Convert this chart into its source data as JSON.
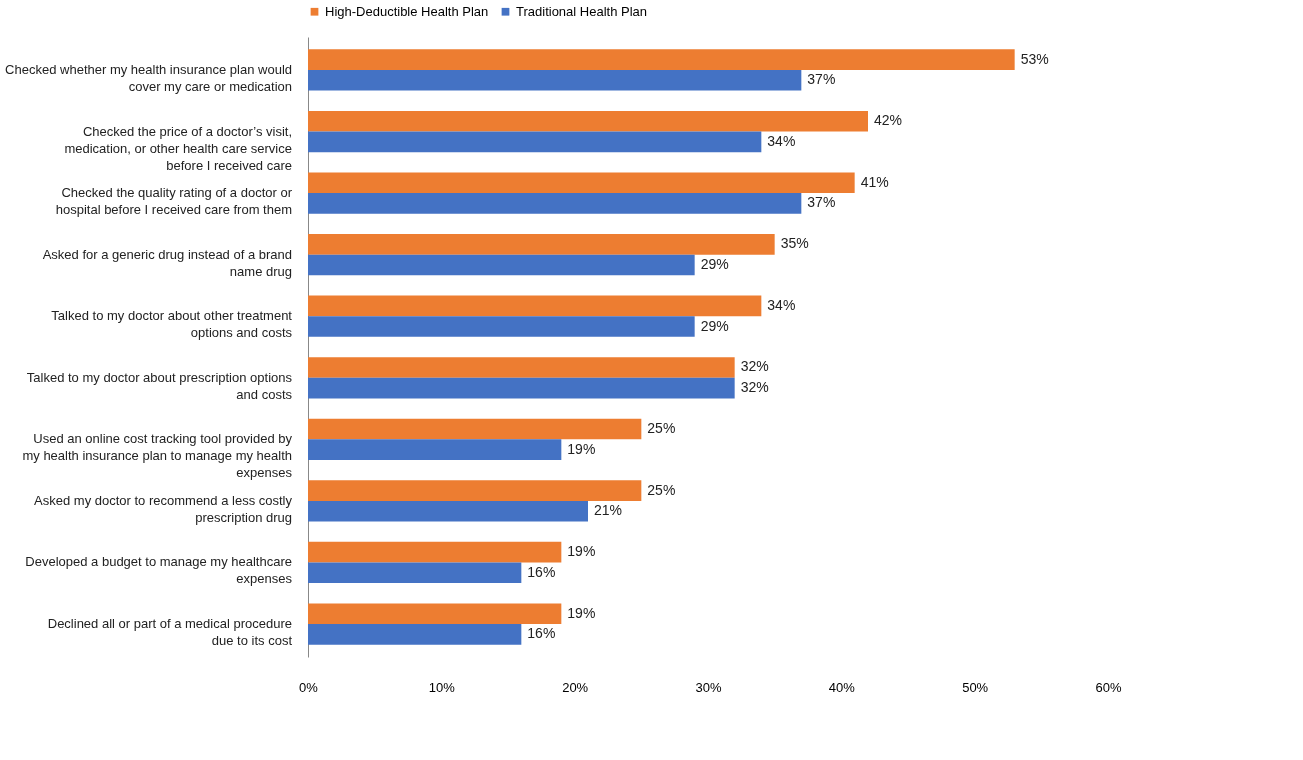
{
  "chart_data": {
    "type": "bar",
    "orientation": "horizontal",
    "legend": "top",
    "categories": [
      "Checked whether my health insurance plan would cover my care or medication",
      "Checked the price of a doctor’s visit, medication, or other health care service before I received care",
      "Checked the quality rating of a doctor or hospital before I received care from them",
      "Asked for a generic drug instead of a brand name drug",
      "Talked to my doctor about other treatment options and costs",
      "Talked to my doctor about prescription options and costs",
      "Used an online cost tracking tool provided by my health insurance plan to manage my health expenses",
      "Asked my doctor to recommend a less costly prescription drug",
      "Developed a budget to manage my healthcare expenses",
      "Declined all or part of a medical procedure due to its cost"
    ],
    "series": [
      {
        "name": "High-Deductible Health Plan",
        "color": "#ed7d31",
        "values": [
          53,
          42,
          41,
          35,
          34,
          32,
          25,
          25,
          19,
          19
        ],
        "value_labels": [
          "53%",
          "42%",
          "41%",
          "35%",
          "34%",
          "32%",
          "25%",
          "25%",
          "19%",
          "19%"
        ]
      },
      {
        "name": "Traditional Health Plan",
        "color": "#4472c4",
        "values": [
          37,
          34,
          37,
          29,
          29,
          32,
          19,
          21,
          16,
          16
        ],
        "value_labels": [
          "37%",
          "34%",
          "37%",
          "29%",
          "29%",
          "32%",
          "19%",
          "21%",
          "16%",
          "16%"
        ]
      }
    ],
    "xlim": [
      0,
      60
    ],
    "xticks": [
      {
        "value": 0,
        "label": "0%"
      },
      {
        "value": 10,
        "label": "10%"
      },
      {
        "value": 20,
        "label": "20%"
      },
      {
        "value": 30,
        "label": "30%"
      },
      {
        "value": 40,
        "label": "40%"
      },
      {
        "value": 50,
        "label": "50%"
      },
      {
        "value": 60,
        "label": "60%"
      }
    ],
    "grid": false
  }
}
